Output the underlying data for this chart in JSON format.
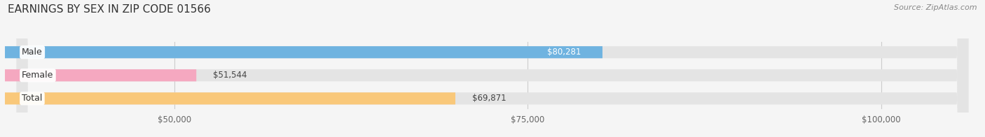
{
  "title": "EARNINGS BY SEX IN ZIP CODE 01566",
  "source": "Source: ZipAtlas.com",
  "categories": [
    "Male",
    "Female",
    "Total"
  ],
  "values": [
    80281,
    51544,
    69871
  ],
  "bar_colors": [
    "#6fb3e0",
    "#f5a8c0",
    "#f9c87a"
  ],
  "value_labels": [
    "$80,281",
    "$51,544",
    "$69,871"
  ],
  "xmin": 0,
  "xmax": 107000,
  "xlim_left": 38000,
  "xticks": [
    50000,
    75000,
    100000
  ],
  "xtick_labels": [
    "$50,000",
    "$75,000",
    "$100,000"
  ],
  "background_color": "#f5f5f5",
  "bar_bg_color": "#e4e4e4",
  "title_fontsize": 11,
  "source_fontsize": 8,
  "label_fontsize": 9,
  "value_fontsize": 8.5,
  "tick_fontsize": 8.5,
  "bar_height": 0.52
}
